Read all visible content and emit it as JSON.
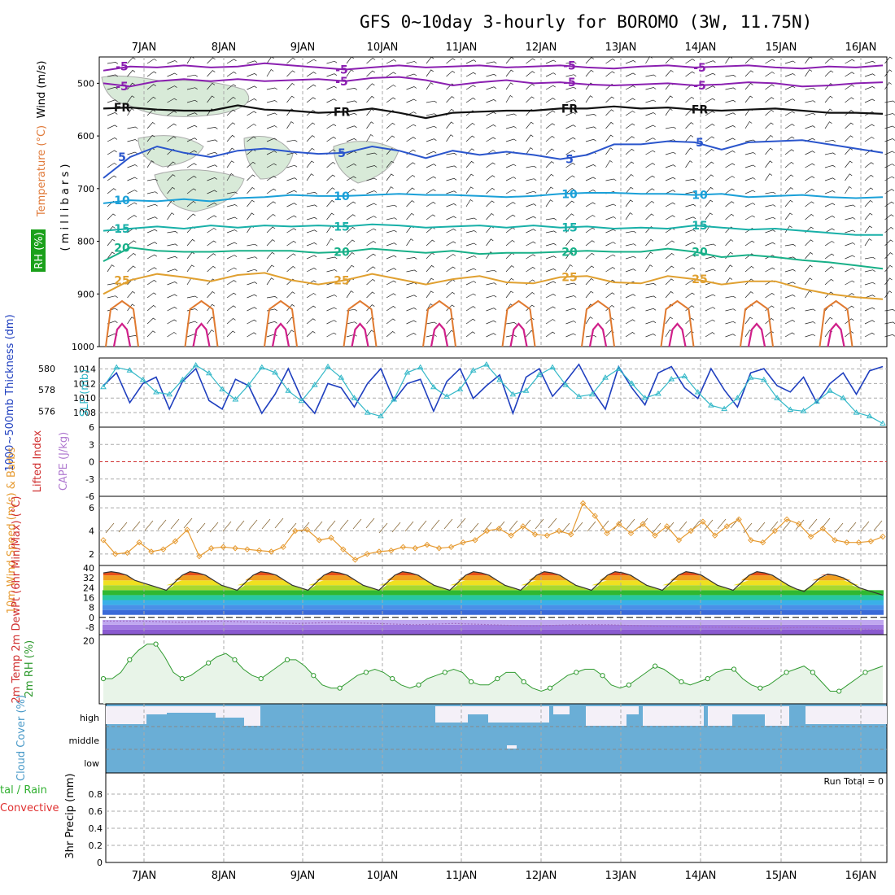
{
  "title": "GFS 0~10day 3-hourly for BOROMO (3W, 11.75N)",
  "colors": {
    "wind": "#000000",
    "temperature": "#e07a3a",
    "rh": "#1a9a1a",
    "thickness": "#1f3fbf",
    "slp": "#33b8c8",
    "lifted_index": "#d03030",
    "cape": "#b07ad0",
    "wind10": "#e69a30",
    "barbs": "#8a6a3a",
    "dewpt": "#a06cc0",
    "rh2m": "#2f9a2f",
    "cloud": "#6aaed6",
    "precip_total": "#30b030",
    "precip_conv": "#e03030"
  },
  "icons": {
    "barb": "wind-barb-icon",
    "triangle": "triangle-marker-icon",
    "diamond": "diamond-marker-icon",
    "circle": "circle-marker-icon"
  },
  "chart_data": [
    {
      "type": "line",
      "panel": "upper-air cross-section",
      "xlabels": [
        "7JAN",
        "8JAN",
        "9JAN",
        "10JAN",
        "11JAN",
        "12JAN",
        "13JAN",
        "14JAN",
        "15JAN",
        "16JAN"
      ],
      "ylabel_parts": [
        "Wind (m/s)",
        "Temperature (°C)",
        "RH (%)",
        "( m i l l i b a r s )"
      ],
      "yticks": [
        "500",
        "600",
        "700",
        "800",
        "900",
        "1000"
      ],
      "ylim": [
        1000,
        450
      ],
      "series": [
        {
          "name": "-5",
          "values": [
            476,
            468,
            470,
            466,
            470,
            468,
            462,
            466,
            470,
            474,
            470,
            466,
            470,
            468,
            466,
            470,
            468,
            466,
            470,
            472,
            468,
            466,
            470,
            468,
            466,
            470,
            472,
            468,
            470,
            466
          ]
        },
        {
          "name": "-5",
          "values": [
            500,
            506,
            496,
            492,
            496,
            492,
            496,
            494,
            492,
            496,
            490,
            488,
            494,
            504,
            498,
            494,
            500,
            498,
            502,
            504,
            502,
            500,
            504,
            502,
            498,
            500,
            506,
            504,
            500,
            498
          ]
        },
        {
          "name": "FR",
          "values": [
            548,
            546,
            550,
            552,
            552,
            542,
            550,
            552,
            556,
            554,
            548,
            556,
            566,
            556,
            554,
            552,
            552,
            548,
            548,
            544,
            548,
            546,
            550,
            552,
            550,
            548,
            552,
            556,
            556,
            558
          ]
        },
        {
          "name": "5",
          "values": [
            680,
            640,
            620,
            632,
            640,
            628,
            624,
            630,
            634,
            632,
            620,
            628,
            642,
            628,
            636,
            630,
            636,
            644,
            636,
            616,
            616,
            610,
            612,
            626,
            612,
            610,
            608,
            616,
            624,
            632
          ]
        },
        {
          "name": "10",
          "values": [
            728,
            722,
            724,
            720,
            724,
            718,
            716,
            712,
            714,
            714,
            712,
            710,
            712,
            712,
            714,
            716,
            714,
            710,
            708,
            708,
            710,
            710,
            712,
            710,
            716,
            714,
            712,
            716,
            718,
            716
          ]
        },
        {
          "name": "15",
          "values": [
            780,
            776,
            772,
            776,
            770,
            774,
            770,
            772,
            770,
            772,
            768,
            770,
            774,
            772,
            770,
            774,
            770,
            774,
            772,
            776,
            774,
            776,
            770,
            774,
            778,
            776,
            780,
            784,
            788,
            788
          ]
        },
        {
          "name": "20",
          "values": [
            838,
            812,
            818,
            820,
            820,
            818,
            818,
            818,
            822,
            820,
            814,
            818,
            822,
            818,
            824,
            822,
            822,
            820,
            818,
            820,
            820,
            814,
            820,
            830,
            826,
            830,
            836,
            840,
            846,
            852
          ]
        },
        {
          "name": "25",
          "values": [
            900,
            874,
            862,
            868,
            876,
            864,
            860,
            874,
            882,
            874,
            862,
            872,
            882,
            872,
            866,
            878,
            880,
            868,
            866,
            878,
            880,
            866,
            872,
            882,
            876,
            876,
            890,
            900,
            906,
            910
          ]
        }
      ]
    },
    {
      "type": "line",
      "panel": "thickness-slp",
      "ylabel_left": "1000~500mb Thickness (dm)",
      "ylabel_right": "SLP (mb)",
      "yticks_left": [
        "576",
        "578",
        "580"
      ],
      "yticks_right": [
        "1008",
        "1010",
        "1012",
        "1014"
      ],
      "series": [
        {
          "name": "SLP (mb)",
          "values": [
            1011.5,
            1014.2,
            1013.8,
            1012.5,
            1010.8,
            1010.5,
            1012.5,
            1014.5,
            1013.4,
            1011.2,
            1009.8,
            1011.8,
            1014.2,
            1013.5,
            1011.0,
            1009.6,
            1011.8,
            1014.3,
            1012.8,
            1010.0,
            1008.0,
            1007.5,
            1009.8,
            1013.5,
            1014.2,
            1011.5,
            1010.2,
            1011.2,
            1013.8,
            1014.6,
            1012.5,
            1010.5,
            1011.0,
            1013.2,
            1014.2,
            1011.8,
            1010.2,
            1010.5,
            1012.8,
            1014.0,
            1012.0,
            1010.0,
            1010.6,
            1012.6,
            1013.0,
            1010.8,
            1009.0,
            1008.5,
            1010.0,
            1012.8,
            1012.5,
            1010.0,
            1008.4,
            1008.2,
            1009.5,
            1011.0,
            1010.0,
            1008.0,
            1007.5,
            1006.5
          ]
        },
        {
          "name": "Thickness (dm)",
          "values": [
            578.4,
            579.6,
            576.8,
            578.6,
            579.2,
            576.2,
            578.8,
            580.0,
            577.0,
            576.2,
            579.0,
            578.4,
            575.8,
            577.6,
            580.0,
            577.2,
            575.8,
            578.6,
            578.2,
            576.4,
            578.6,
            580.0,
            577.0,
            578.6,
            579.0,
            576.0,
            578.8,
            580.0,
            577.2,
            578.4,
            579.4,
            575.8,
            579.2,
            580.0,
            577.4,
            578.8,
            580.4,
            578.0,
            576.2,
            580.2,
            578.2,
            576.6,
            579.6,
            580.2,
            578.2,
            577.2,
            580.0,
            578.0,
            576.4,
            579.6,
            580.0,
            578.4,
            577.8,
            579.2,
            576.8,
            578.6,
            579.6,
            577.6,
            579.8,
            580.2
          ]
        }
      ]
    },
    {
      "type": "line",
      "panel": "lifted-index-cape",
      "ylabel_left": "Lifted Index",
      "ylabel_right": "CAPE (J/kg)",
      "yticks": [
        "6",
        "3",
        "0",
        "-3",
        "-6"
      ],
      "ylim": [
        -6,
        6
      ],
      "series": []
    },
    {
      "type": "line",
      "panel": "10m-wind",
      "ylabel": "10m Wind Speed (m/s) & Barbs",
      "yticks": [
        "2",
        "4",
        "6"
      ],
      "ylim": [
        1,
        7
      ],
      "series": [
        {
          "name": "10m Wind Speed",
          "values": [
            3.2,
            2.0,
            2.1,
            3.0,
            2.2,
            2.4,
            3.1,
            4.1,
            1.8,
            2.5,
            2.6,
            2.5,
            2.4,
            2.3,
            2.2,
            2.6,
            4.0,
            4.1,
            3.2,
            3.4,
            2.4,
            1.5,
            2.0,
            2.2,
            2.3,
            2.6,
            2.5,
            2.8,
            2.5,
            2.6,
            3.0,
            3.2,
            4.0,
            4.2,
            3.6,
            4.4,
            3.7,
            3.6,
            4.0,
            3.7,
            6.4,
            5.3,
            3.8,
            4.6,
            3.8,
            4.6,
            3.6,
            4.4,
            3.2,
            4.0,
            4.8,
            3.6,
            4.4,
            5.0,
            3.2,
            3.0,
            4.0,
            5.0,
            4.6,
            3.5,
            4.2,
            3.2,
            3.0,
            3.0,
            3.1,
            3.5
          ]
        }
      ]
    },
    {
      "type": "line",
      "panel": "2m-temperature",
      "ylabel": "2m Temp 2m DewPt (6hr Min/Max) (°C)",
      "yticks": [
        "40",
        "32",
        "24",
        "16",
        "8",
        "0",
        "-8"
      ],
      "ylim": [
        -14,
        42
      ],
      "series": [
        {
          "name": "2m Temp",
          "values": [
            36,
            37,
            36,
            34,
            30,
            28,
            26,
            24,
            22,
            28,
            34,
            37,
            36,
            34,
            30,
            26,
            24,
            22,
            28,
            34,
            37,
            36,
            34,
            30,
            26,
            24,
            22,
            28,
            34,
            37,
            36,
            34,
            30,
            26,
            24,
            22,
            28,
            34,
            37,
            36,
            34,
            30,
            26,
            24,
            22,
            28,
            34,
            37,
            36,
            34,
            30,
            26,
            24,
            22,
            28,
            34,
            37,
            36,
            34,
            30,
            26,
            24,
            22,
            28,
            34,
            37,
            36,
            34,
            30,
            26,
            24,
            22,
            28,
            34,
            37,
            36,
            34,
            30,
            26,
            24,
            22,
            28,
            34,
            37,
            36,
            34,
            30,
            26,
            23,
            21,
            26,
            32,
            35,
            34,
            32,
            28,
            24,
            22,
            20,
            18
          ]
        },
        {
          "name": "2m DewPt",
          "values": [
            -3,
            -3,
            -4,
            -3,
            -4,
            -5,
            -4,
            -5,
            -6,
            -5,
            -6,
            -7,
            -6,
            -6,
            -7,
            -8,
            -8,
            -9,
            -8,
            -9,
            -10
          ]
        }
      ]
    },
    {
      "type": "area",
      "panel": "2m-rh",
      "ylabel": "2m RH (%)",
      "yticks": [
        "20"
      ],
      "ylim": [
        0,
        22
      ],
      "series": [
        {
          "name": "2m RH",
          "values": [
            8,
            8,
            10,
            14,
            17,
            19,
            19,
            15,
            10,
            8,
            9,
            11,
            13,
            15,
            16,
            14,
            11,
            9,
            8,
            10,
            12,
            14,
            14,
            12,
            9,
            6,
            5,
            5,
            7,
            9,
            10,
            11,
            10,
            8,
            6,
            5,
            6,
            8,
            9,
            10,
            11,
            10,
            7,
            6,
            6,
            8,
            10,
            10,
            7,
            5,
            4,
            5,
            7,
            9,
            10,
            11,
            11,
            9,
            6,
            5,
            6,
            8,
            10,
            12,
            11,
            9,
            7,
            6,
            7,
            8,
            10,
            11,
            11,
            8,
            6,
            5,
            6,
            8,
            10,
            11,
            12,
            10,
            7,
            4,
            4,
            6,
            8,
            10,
            11,
            12
          ]
        }
      ]
    },
    {
      "type": "bar",
      "panel": "cloud-cover",
      "ylabel": "Cloud Cover (%)",
      "levels": [
        "high",
        "middle",
        "low"
      ],
      "series": []
    },
    {
      "type": "bar",
      "panel": "precip",
      "ylabel": "3hr Precip (mm)",
      "ylabel_left_1": "tal / Rain",
      "ylabel_left_2": "Convective",
      "yticks": [
        "0",
        "0.2",
        "0.4",
        "0.6",
        "0.8"
      ],
      "ylim": [
        0,
        1
      ],
      "run_total": "Run Total = 0",
      "series": []
    }
  ]
}
